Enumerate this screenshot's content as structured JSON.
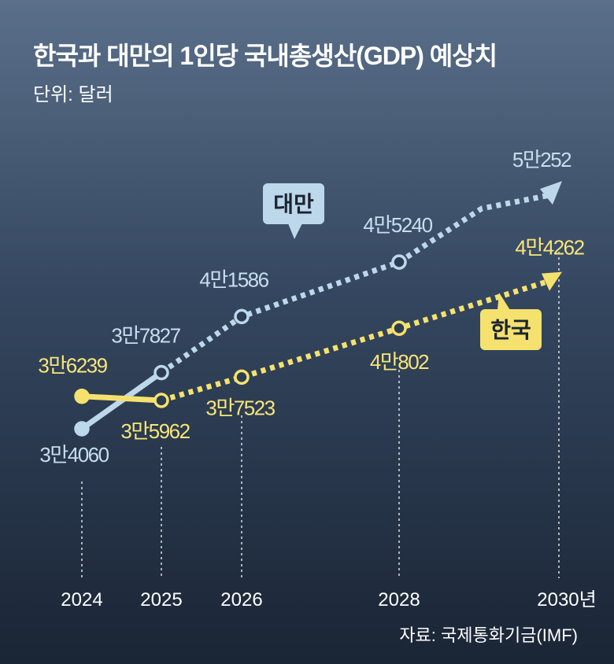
{
  "title": "한국과 대만의 1인당 국내총생산(GDP) 예상치",
  "subtitle": "단위: 달러",
  "source": "자료: 국제통화기금(IMF)",
  "colors": {
    "taiwan": "#bcd8ea",
    "korea": "#f5e26e",
    "taiwan_label_text": "#c8deef",
    "korea_label_text": "#f8e57a"
  },
  "chart_data": {
    "type": "line",
    "x": [
      2024,
      2025,
      2026,
      2028,
      2030
    ],
    "x_tick_labels": [
      "2024",
      "2025",
      "2026",
      "2028",
      "2030년"
    ],
    "series": [
      {
        "name": "대만",
        "values": [
          34060,
          37827,
          41586,
          45240,
          50252
        ],
        "labels": [
          "3만4060",
          "3만7827",
          "4만1586",
          "4만5240",
          "5만252"
        ],
        "solid_until_index": 1
      },
      {
        "name": "한국",
        "values": [
          36239,
          35962,
          37523,
          40802,
          44262
        ],
        "labels": [
          "3만6239",
          "3만5962",
          "3만7523",
          "4만802",
          "4만4262"
        ],
        "solid_until_index": 1
      }
    ]
  }
}
